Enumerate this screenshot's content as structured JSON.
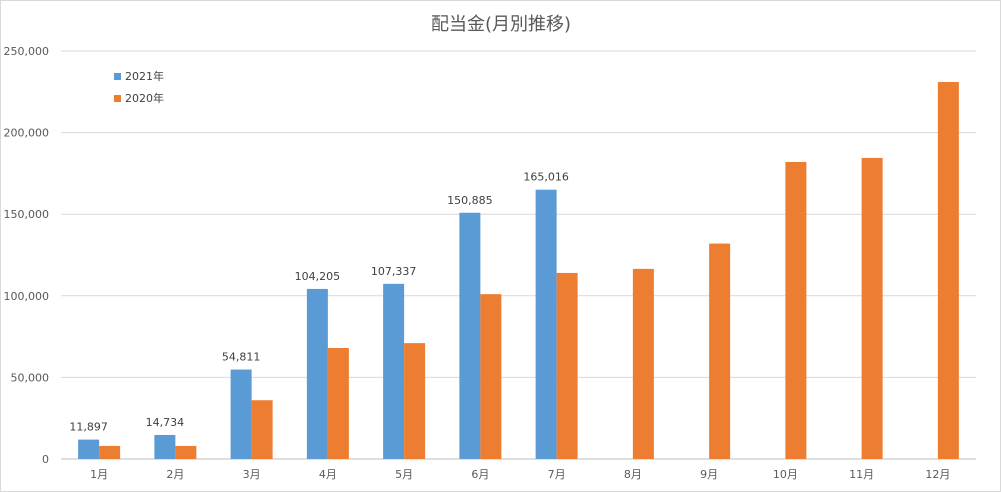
{
  "chart_data": {
    "type": "bar",
    "title": "配当金(月別推移)",
    "xlabel": "",
    "ylabel": "",
    "categories": [
      "1月",
      "2月",
      "3月",
      "4月",
      "5月",
      "6月",
      "7月",
      "8月",
      "9月",
      "10月",
      "11月",
      "12月"
    ],
    "series": [
      {
        "name": "2021年",
        "color": "#5b9bd5",
        "values": [
          11897,
          14734,
          54811,
          104205,
          107337,
          150885,
          165016,
          null,
          null,
          null,
          null,
          null
        ],
        "data_labels": [
          "11,897",
          "14,734",
          "54,811",
          "104,205",
          "107,337",
          "150,885",
          "165,016",
          "",
          "",
          "",
          "",
          ""
        ]
      },
      {
        "name": "2020年",
        "color": "#ed7d31",
        "values": [
          8000,
          8000,
          36000,
          68000,
          71000,
          101000,
          114000,
          116500,
          132000,
          182000,
          184500,
          231000
        ],
        "data_labels": [
          "",
          "",
          "",
          "",
          "",
          "",
          "",
          "",
          "",
          "",
          "",
          ""
        ]
      }
    ],
    "ylim": [
      0,
      250000
    ],
    "yticks": [
      0,
      50000,
      100000,
      150000,
      200000,
      250000
    ],
    "ytick_labels": [
      "0",
      "50,000",
      "100,000",
      "150,000",
      "200,000",
      "250,000"
    ],
    "grid": true,
    "legend_position": "top-left"
  }
}
